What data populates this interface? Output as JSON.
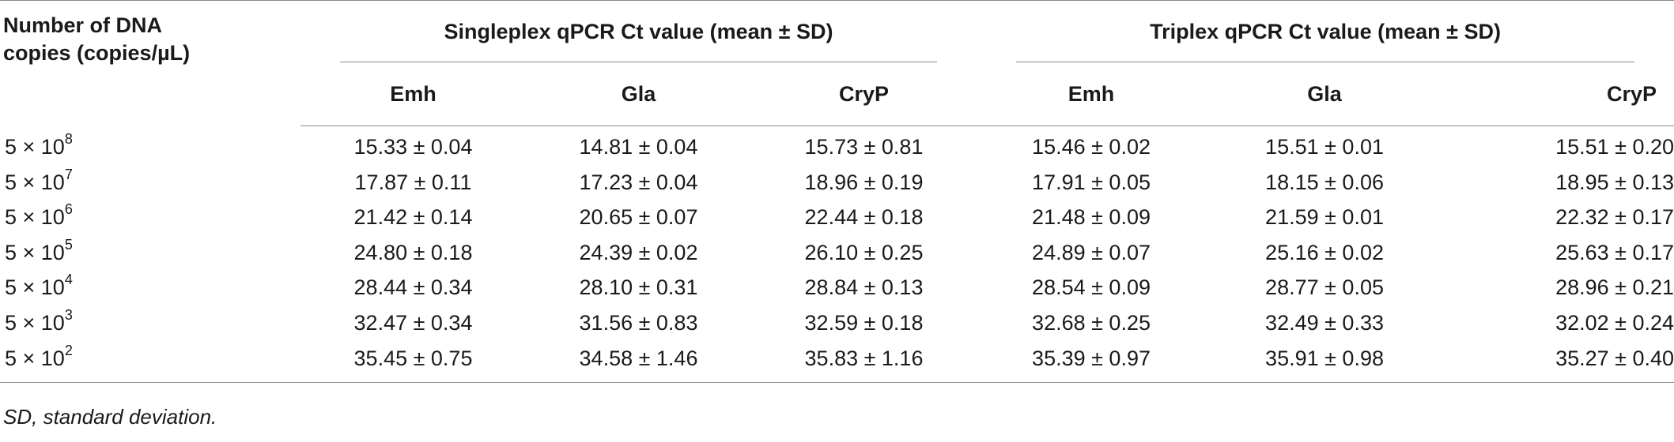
{
  "table": {
    "header": {
      "first_col_line1": "Number of DNA",
      "first_col_line2": "copies (copies/µL)",
      "group_singleplex": "Singleplex qPCR Ct value (mean ± SD)",
      "group_triplex": "Triplex qPCR Ct value (mean ± SD)",
      "sub_cols": [
        "Emh",
        "Gla",
        "CryP",
        "Emh",
        "Gla",
        "CryP"
      ]
    },
    "rows": [
      {
        "base": "5 × 10",
        "exp": "8",
        "values": [
          "15.33 ± 0.04",
          "14.81 ± 0.04",
          "15.73 ± 0.81",
          "15.46 ± 0.02",
          "15.51 ± 0.01",
          "15.51 ± 0.20"
        ]
      },
      {
        "base": "5 × 10",
        "exp": "7",
        "values": [
          "17.87 ± 0.11",
          "17.23 ± 0.04",
          "18.96 ± 0.19",
          "17.91 ± 0.05",
          "18.15 ± 0.06",
          "18.95 ± 0.13"
        ]
      },
      {
        "base": "5 × 10",
        "exp": "6",
        "values": [
          "21.42 ± 0.14",
          "20.65 ± 0.07",
          "22.44 ± 0.18",
          "21.48 ± 0.09",
          "21.59 ± 0.01",
          "22.32 ± 0.17"
        ]
      },
      {
        "base": "5 × 10",
        "exp": "5",
        "values": [
          "24.80 ± 0.18",
          "24.39 ± 0.02",
          "26.10 ± 0.25",
          "24.89 ± 0.07",
          "25.16 ± 0.02",
          "25.63 ± 0.17"
        ]
      },
      {
        "base": "5 × 10",
        "exp": "4",
        "values": [
          "28.44 ± 0.34",
          "28.10 ± 0.31",
          "28.84 ± 0.13",
          "28.54 ± 0.09",
          "28.77 ± 0.05",
          "28.96 ± 0.21"
        ]
      },
      {
        "base": "5 × 10",
        "exp": "3",
        "values": [
          "32.47 ± 0.34",
          "31.56 ± 0.83",
          "32.59 ± 0.18",
          "32.68 ± 0.25",
          "32.49 ± 0.33",
          "32.02 ± 0.24"
        ]
      },
      {
        "base": "5 × 10",
        "exp": "2",
        "values": [
          "35.45 ± 0.75",
          "34.58 ± 1.46",
          "35.83 ± 1.16",
          "35.39 ± 0.97",
          "35.91 ± 0.98",
          "35.27 ± 0.40"
        ]
      }
    ]
  },
  "footnote": "SD, standard deviation."
}
